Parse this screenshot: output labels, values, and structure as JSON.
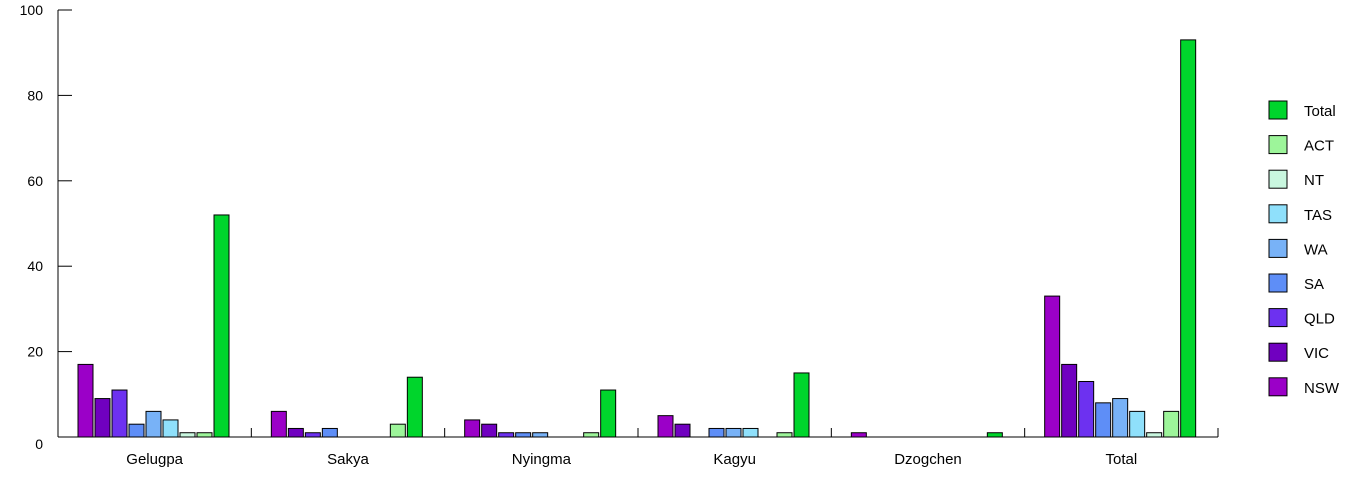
{
  "chart_data": {
    "type": "bar",
    "categories": [
      "Gelugpa",
      "Sakya",
      "Nyingma",
      "Kagyu",
      "Dzogchen",
      "Total"
    ],
    "ylim": [
      0,
      100
    ],
    "yticks": [
      0,
      20,
      40,
      60,
      80,
      100
    ],
    "grid": false,
    "legend_position": "right",
    "series": [
      {
        "name": "NSW",
        "color": "#9b00c8",
        "values": [
          17,
          6,
          4,
          5,
          1,
          33
        ]
      },
      {
        "name": "VIC",
        "color": "#7000c0",
        "values": [
          9,
          2,
          3,
          3,
          0,
          17
        ]
      },
      {
        "name": "QLD",
        "color": "#6d31f0",
        "values": [
          11,
          1,
          1,
          0,
          0,
          13
        ]
      },
      {
        "name": "SA",
        "color": "#5e8ef7",
        "values": [
          3,
          2,
          1,
          2,
          0,
          8
        ]
      },
      {
        "name": "WA",
        "color": "#78b2f7",
        "values": [
          6,
          0,
          1,
          2,
          0,
          9
        ]
      },
      {
        "name": "TAS",
        "color": "#8fe0fb",
        "values": [
          4,
          0,
          0,
          2,
          0,
          6
        ]
      },
      {
        "name": "NT",
        "color": "#c9f7df",
        "values": [
          1,
          0,
          0,
          0,
          0,
          1
        ]
      },
      {
        "name": "ACT",
        "color": "#9df59a",
        "values": [
          1,
          3,
          1,
          1,
          0,
          6
        ]
      },
      {
        "name": "Total",
        "color": "#00d52c",
        "values": [
          52,
          14,
          11,
          15,
          1,
          93
        ]
      }
    ]
  }
}
